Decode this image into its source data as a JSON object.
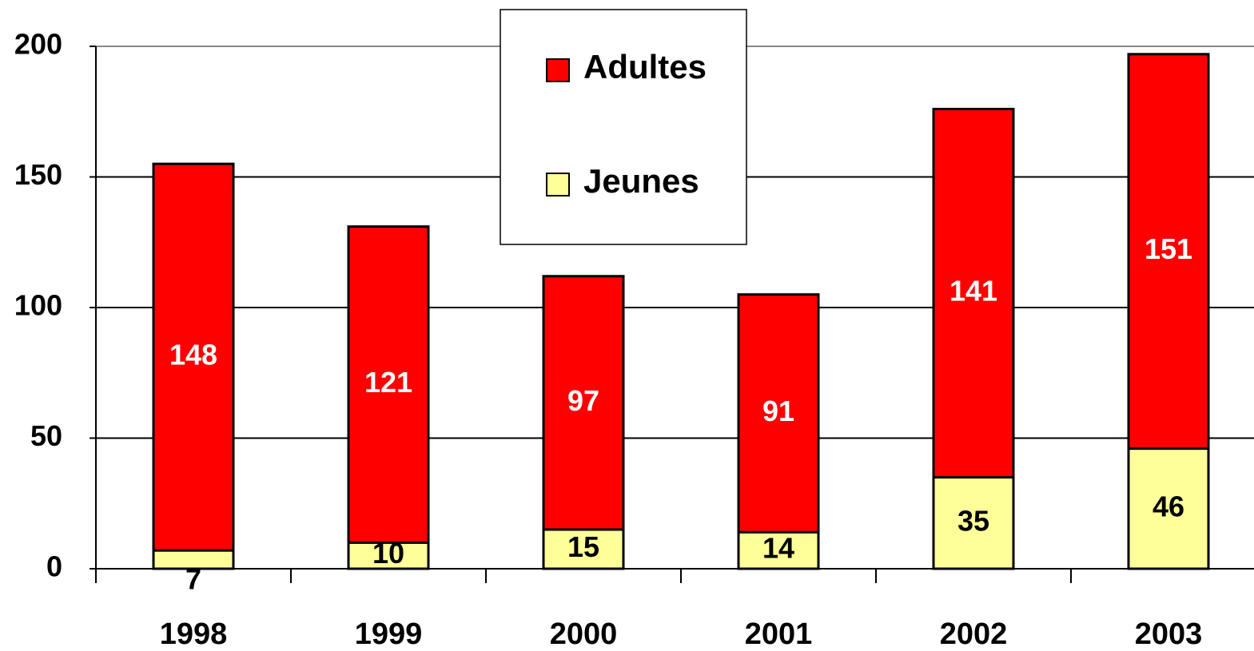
{
  "chart_data": {
    "type": "stacked_bar",
    "categories": [
      "1998",
      "1999",
      "2000",
      "2001",
      "2002",
      "2003"
    ],
    "series": [
      {
        "name": "Jeunes",
        "color": "#ffff99",
        "values": [
          7,
          10,
          15,
          14,
          35,
          46
        ]
      },
      {
        "name": "Adultes",
        "color": "#ff0000",
        "values": [
          148,
          121,
          97,
          91,
          141,
          151
        ]
      }
    ],
    "ylim": [
      0,
      200
    ],
    "yticks": [
      0,
      50,
      100,
      150,
      200
    ],
    "grid": true,
    "legend": "top-center"
  }
}
